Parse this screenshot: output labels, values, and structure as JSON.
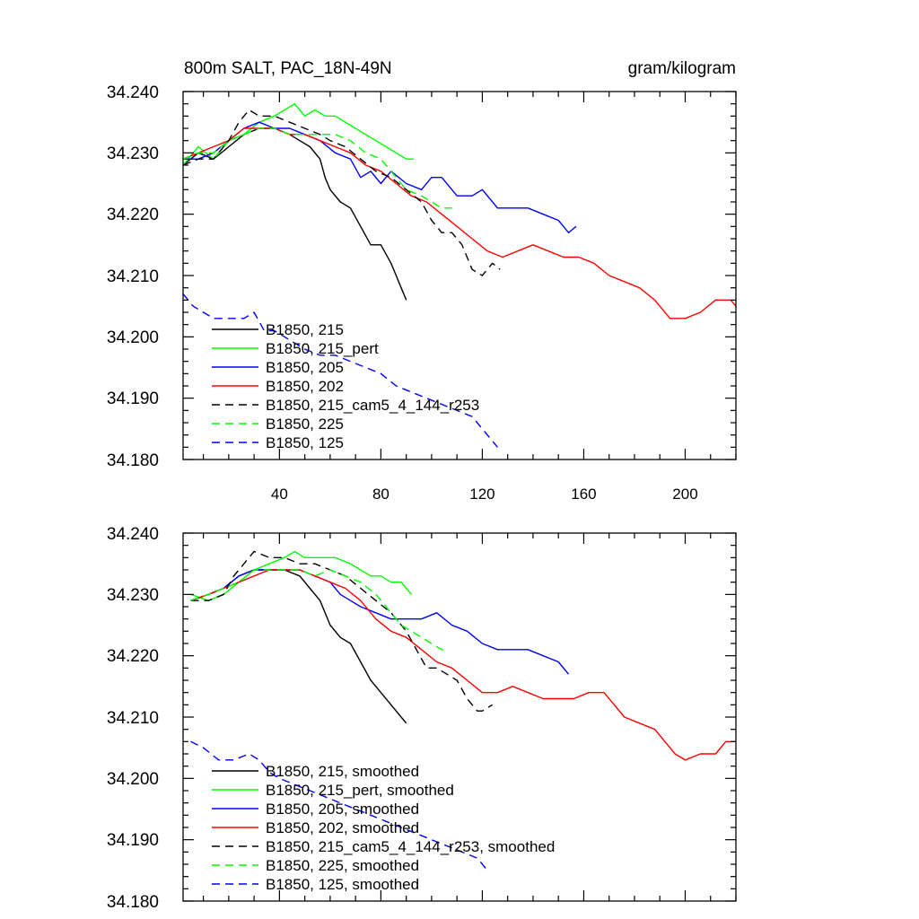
{
  "chart_data": [
    {
      "type": "line",
      "title": "800m SALT, PAC_18N-49N",
      "units": "gram/kilogram",
      "xlim": [
        2,
        220
      ],
      "ylim": [
        34.18,
        34.24
      ],
      "x_ticks": [
        40,
        80,
        120,
        160,
        200
      ],
      "y_tick_labels": [
        "34.240",
        "34.230",
        "34.220",
        "34.210",
        "34.200",
        "34.190",
        "34.180"
      ],
      "legend_labels": [
        "B1850, 215",
        "B1850, 215_pert",
        "B1850, 205",
        "B1850, 202",
        "B1850, 215_cam5_4_144_r253",
        "B1850, 225",
        "B1850, 125"
      ],
      "series": [
        {
          "name": "B1850, 215",
          "color": "#000000",
          "dash": "solid",
          "x": [
            2,
            8,
            14,
            20,
            26,
            32,
            38,
            44,
            48,
            52,
            56,
            58,
            60,
            64,
            68,
            72,
            76,
            80,
            84,
            86,
            88,
            90
          ],
          "y": [
            34.228,
            34.23,
            34.229,
            34.231,
            34.233,
            34.234,
            34.234,
            34.233,
            34.232,
            34.231,
            34.229,
            34.226,
            34.224,
            34.222,
            34.221,
            34.218,
            34.215,
            34.215,
            34.212,
            34.21,
            34.208,
            34.206
          ]
        },
        {
          "name": "B1850, 215_pert",
          "color": "#00ff00",
          "dash": "solid",
          "x": [
            2,
            8,
            14,
            20,
            26,
            32,
            38,
            42,
            46,
            50,
            54,
            58,
            62,
            66,
            70,
            74,
            78,
            82,
            86,
            90,
            93
          ],
          "y": [
            34.228,
            34.231,
            34.229,
            34.232,
            34.233,
            34.235,
            34.236,
            34.237,
            34.238,
            34.236,
            34.237,
            34.236,
            34.236,
            34.235,
            34.234,
            34.233,
            34.232,
            34.231,
            34.23,
            34.229,
            34.229
          ]
        },
        {
          "name": "B1850, 205",
          "color": "#0000ff",
          "dash": "solid",
          "x": [
            2,
            8,
            14,
            20,
            26,
            32,
            38,
            44,
            50,
            56,
            62,
            68,
            72,
            76,
            80,
            84,
            90,
            96,
            100,
            104,
            110,
            116,
            120,
            126,
            132,
            138,
            144,
            150,
            154,
            157
          ],
          "y": [
            34.229,
            34.229,
            34.23,
            34.232,
            34.234,
            34.235,
            34.234,
            34.234,
            34.233,
            34.232,
            34.23,
            34.229,
            34.226,
            34.227,
            34.225,
            34.227,
            34.225,
            34.224,
            34.226,
            34.226,
            34.223,
            34.223,
            34.224,
            34.221,
            34.221,
            34.221,
            34.22,
            34.219,
            34.217,
            34.218
          ]
        },
        {
          "name": "B1850, 202",
          "color": "#ff0000",
          "dash": "solid",
          "x": [
            2,
            8,
            14,
            20,
            26,
            32,
            38,
            44,
            50,
            56,
            62,
            68,
            74,
            80,
            86,
            92,
            98,
            104,
            110,
            116,
            122,
            128,
            134,
            140,
            146,
            152,
            158,
            164,
            170,
            176,
            182,
            188,
            194,
            200,
            206,
            212,
            218,
            220
          ],
          "y": [
            34.229,
            34.23,
            34.231,
            34.232,
            34.234,
            34.234,
            34.234,
            34.233,
            34.233,
            34.232,
            34.231,
            34.23,
            34.228,
            34.227,
            34.225,
            34.223,
            34.222,
            34.22,
            34.218,
            34.216,
            34.214,
            34.213,
            34.214,
            34.215,
            34.214,
            34.213,
            34.213,
            34.212,
            34.21,
            34.209,
            34.208,
            34.206,
            34.203,
            34.203,
            34.204,
            34.206,
            34.206,
            34.205
          ]
        },
        {
          "name": "B1850, 215_cam5_4_144_r253",
          "color": "#000000",
          "dash": "dashed",
          "x": [
            2,
            8,
            14,
            20,
            24,
            28,
            32,
            38,
            44,
            50,
            56,
            60,
            66,
            72,
            78,
            84,
            90,
            96,
            100,
            104,
            108,
            112,
            116,
            120,
            124,
            127
          ],
          "y": [
            34.228,
            34.229,
            34.229,
            34.232,
            34.235,
            34.237,
            34.236,
            34.236,
            34.235,
            34.234,
            34.233,
            34.232,
            34.231,
            34.229,
            34.227,
            34.226,
            34.224,
            34.222,
            34.219,
            34.217,
            34.217,
            34.215,
            34.211,
            34.21,
            34.212,
            34.211
          ]
        },
        {
          "name": "B1850, 225",
          "color": "#00ff00",
          "dash": "dashed",
          "x": [
            2,
            8,
            14,
            20,
            26,
            32,
            38,
            44,
            50,
            56,
            62,
            68,
            74,
            80,
            86,
            90,
            96,
            100,
            104,
            108
          ],
          "y": [
            34.229,
            34.23,
            34.23,
            34.232,
            34.233,
            34.234,
            34.234,
            34.233,
            34.233,
            34.233,
            34.233,
            34.232,
            34.23,
            34.229,
            34.226,
            34.224,
            34.223,
            34.222,
            34.221,
            34.221
          ]
        },
        {
          "name": "B1850, 125",
          "color": "#0000ff",
          "dash": "dashed",
          "x": [
            2,
            6,
            10,
            14,
            18,
            22,
            26,
            30,
            34,
            38,
            42,
            46,
            50,
            56,
            62,
            68,
            74,
            80,
            86,
            92,
            98,
            104,
            110,
            116,
            120,
            124,
            126
          ],
          "y": [
            34.207,
            34.205,
            34.204,
            34.203,
            34.203,
            34.203,
            34.203,
            34.204,
            34.201,
            34.201,
            34.2,
            34.199,
            34.198,
            34.197,
            34.197,
            34.196,
            34.195,
            34.194,
            34.192,
            34.191,
            34.19,
            34.189,
            34.188,
            34.187,
            34.185,
            34.183,
            34.182
          ]
        }
      ]
    },
    {
      "type": "line",
      "title": "",
      "units": "",
      "xlim": [
        2,
        220
      ],
      "ylim": [
        34.18,
        34.24
      ],
      "x_ticks": [
        40,
        80,
        120,
        160,
        200
      ],
      "y_tick_labels": [
        "34.240",
        "34.230",
        "34.220",
        "34.210",
        "34.200",
        "34.190",
        "34.180"
      ],
      "legend_labels": [
        "B1850, 215, smoothed",
        "B1850, 215_pert, smoothed",
        "B1850, 205, smoothed",
        "B1850, 202, smoothed",
        "B1850, 215_cam5_4_144_r253, smoothed",
        "B1850, 225, smoothed",
        "B1850, 125, smoothed"
      ],
      "series": [
        {
          "name": "B1850, 215, smoothed",
          "color": "#000000",
          "dash": "solid",
          "x": [
            5,
            12,
            18,
            24,
            30,
            36,
            42,
            48,
            52,
            56,
            60,
            64,
            68,
            72,
            76,
            80,
            84,
            88,
            90
          ],
          "y": [
            34.229,
            34.23,
            34.231,
            34.233,
            34.234,
            34.234,
            34.234,
            34.233,
            34.231,
            34.229,
            34.225,
            34.223,
            34.222,
            34.219,
            34.216,
            34.214,
            34.212,
            34.21,
            34.209
          ]
        },
        {
          "name": "B1850, 215_pert, smoothed",
          "color": "#00ff00",
          "dash": "solid",
          "x": [
            5,
            12,
            18,
            24,
            30,
            36,
            42,
            46,
            50,
            56,
            62,
            68,
            72,
            76,
            80,
            84,
            88,
            92
          ],
          "y": [
            34.23,
            34.229,
            34.23,
            34.232,
            34.234,
            34.235,
            34.236,
            34.237,
            34.236,
            34.236,
            34.236,
            34.235,
            34.234,
            34.233,
            34.233,
            34.232,
            34.232,
            34.23
          ]
        },
        {
          "name": "B1850, 205, smoothed",
          "color": "#0000ff",
          "dash": "solid",
          "x": [
            5,
            12,
            18,
            24,
            30,
            36,
            42,
            48,
            54,
            60,
            64,
            68,
            72,
            78,
            84,
            90,
            96,
            102,
            108,
            114,
            120,
            126,
            132,
            138,
            144,
            150,
            154
          ],
          "y": [
            34.229,
            34.23,
            34.231,
            34.233,
            34.234,
            34.234,
            34.234,
            34.234,
            34.233,
            34.232,
            34.23,
            34.229,
            34.228,
            34.227,
            34.226,
            34.226,
            34.226,
            34.227,
            34.225,
            34.224,
            34.222,
            34.221,
            34.221,
            34.221,
            34.22,
            34.219,
            34.217
          ]
        },
        {
          "name": "B1850, 202, smoothed",
          "color": "#ff0000",
          "dash": "solid",
          "x": [
            5,
            12,
            18,
            24,
            30,
            36,
            42,
            48,
            54,
            60,
            66,
            72,
            78,
            84,
            90,
            96,
            102,
            108,
            114,
            120,
            126,
            132,
            138,
            144,
            150,
            156,
            162,
            168,
            172,
            176,
            182,
            188,
            192,
            196,
            200,
            206,
            212,
            216,
            220
          ],
          "y": [
            34.229,
            34.23,
            34.231,
            34.232,
            34.233,
            34.234,
            34.234,
            34.234,
            34.233,
            34.232,
            34.231,
            34.229,
            34.226,
            34.224,
            34.223,
            34.221,
            34.219,
            34.218,
            34.216,
            34.214,
            34.214,
            34.215,
            34.214,
            34.213,
            34.213,
            34.213,
            34.214,
            34.214,
            34.212,
            34.21,
            34.209,
            34.208,
            34.206,
            34.204,
            34.203,
            34.204,
            34.204,
            34.206,
            34.206
          ]
        },
        {
          "name": "B1850, 215_cam5_4_144_r253, smoothed",
          "color": "#000000",
          "dash": "dashed",
          "x": [
            5,
            12,
            18,
            22,
            26,
            30,
            36,
            42,
            48,
            54,
            60,
            66,
            72,
            78,
            84,
            90,
            94,
            98,
            102,
            106,
            110,
            114,
            118,
            120,
            124
          ],
          "y": [
            34.229,
            34.229,
            34.23,
            34.233,
            34.235,
            34.237,
            34.236,
            34.236,
            34.235,
            34.235,
            34.234,
            34.233,
            34.231,
            34.229,
            34.227,
            34.224,
            34.221,
            34.218,
            34.218,
            34.217,
            34.216,
            34.213,
            34.211,
            34.211,
            34.212
          ]
        },
        {
          "name": "B1850, 225, smoothed",
          "color": "#00ff00",
          "dash": "dashed",
          "x": [
            5,
            12,
            18,
            24,
            30,
            36,
            42,
            48,
            54,
            60,
            66,
            72,
            78,
            84,
            88,
            92,
            96,
            100,
            104,
            106
          ],
          "y": [
            34.229,
            34.23,
            34.231,
            34.232,
            34.234,
            34.234,
            34.234,
            34.234,
            34.233,
            34.234,
            34.233,
            34.232,
            34.23,
            34.227,
            34.225,
            34.224,
            34.223,
            34.222,
            34.221,
            34.221
          ]
        },
        {
          "name": "B1850, 125, smoothed",
          "color": "#0000ff",
          "dash": "dashed",
          "x": [
            5,
            10,
            16,
            22,
            28,
            32,
            36,
            40,
            46,
            52,
            58,
            64,
            70,
            76,
            82,
            88,
            94,
            100,
            106,
            112,
            118,
            122
          ],
          "y": [
            34.206,
            34.205,
            34.203,
            34.203,
            34.204,
            34.203,
            34.201,
            34.2,
            34.199,
            34.198,
            34.197,
            34.196,
            34.195,
            34.194,
            34.193,
            34.192,
            34.191,
            34.19,
            34.189,
            34.188,
            34.187,
            34.185
          ]
        }
      ]
    }
  ]
}
